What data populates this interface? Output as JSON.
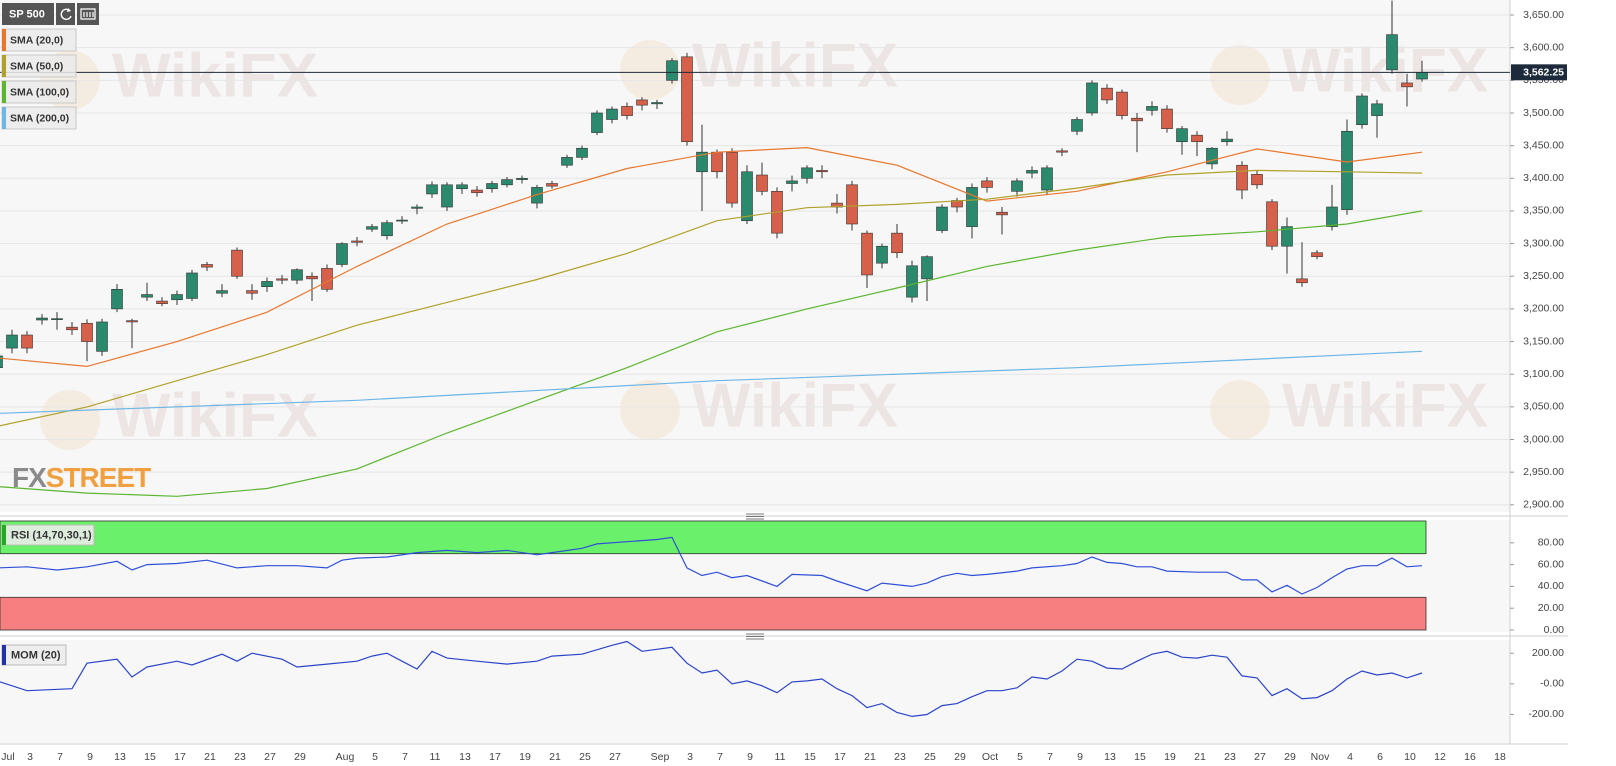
{
  "toolbar": {
    "symbol": "SP 500"
  },
  "watermark": "WikiFX",
  "brand": [
    "FX",
    "STREET"
  ],
  "chart_data": [
    {
      "type": "candlestick",
      "title": "SP 500",
      "categories": [
        "Jul",
        null,
        "3",
        null,
        "7",
        null,
        "9",
        null,
        "13",
        null,
        "15",
        null,
        "17",
        null,
        "21",
        null,
        "23",
        null,
        "27",
        null,
        "29",
        null,
        null,
        "Aug",
        null,
        "5",
        null,
        "7",
        null,
        "11",
        null,
        "13",
        null,
        "17",
        null,
        "19",
        null,
        "21",
        null,
        "25",
        null,
        "27",
        null,
        null,
        "Sep",
        null,
        "3",
        null,
        "7",
        null,
        "9",
        null,
        "11",
        null,
        "15",
        null,
        "17",
        null,
        "21",
        null,
        "23",
        null,
        "25",
        null,
        "29",
        null,
        "Oct",
        null,
        "5",
        null,
        "7",
        null,
        "9",
        null,
        "13",
        null,
        "15",
        null,
        "19",
        null,
        "21",
        null,
        "23",
        null,
        "27",
        null,
        "29",
        null,
        "Nov",
        null,
        "4",
        null,
        "6",
        null,
        "10",
        null,
        "12",
        null,
        "16",
        null,
        "18"
      ],
      "open": [
        3110,
        3140,
        3160,
        3183,
        3184,
        3172,
        3178,
        3135,
        3200,
        3182,
        3218,
        3212,
        3214,
        3216,
        3268,
        3224,
        3290,
        3228,
        3234,
        3246,
        3244,
        3250,
        3262,
        3268,
        3304,
        3322,
        3312,
        3336,
        3354,
        3376,
        3356,
        3384,
        3382,
        3384,
        3390,
        3398,
        3362,
        3392,
        3420,
        3432,
        3470,
        3490,
        3510,
        3520,
        3514,
        3550,
        3586,
        3410,
        3440,
        3440,
        3335,
        3405,
        3380,
        3392,
        3400,
        3412,
        3362,
        3390,
        3316,
        3270,
        3316,
        3218,
        3246,
        3320,
        3366,
        3326,
        3396,
        3348,
        3380,
        3408,
        3382,
        3442,
        3472,
        3500,
        3538,
        3532,
        3492,
        3504,
        3506,
        3456,
        3466,
        3422,
        3456,
        3420,
        3406,
        3364,
        3296,
        3246,
        3286,
        3326,
        3352,
        3482,
        3496,
        3566,
        3546,
        3552,
        null,
        null,
        null,
        null,
        null
      ],
      "high": [
        3138,
        3168,
        3166,
        3192,
        3195,
        3180,
        3184,
        3185,
        3238,
        3185,
        3240,
        3218,
        3228,
        3260,
        3272,
        3238,
        3294,
        3238,
        3248,
        3252,
        3262,
        3256,
        3268,
        3302,
        3310,
        3330,
        3336,
        3342,
        3360,
        3395,
        3394,
        3394,
        3388,
        3396,
        3402,
        3404,
        3390,
        3396,
        3436,
        3450,
        3504,
        3510,
        3516,
        3524,
        3520,
        3584,
        3592,
        3482,
        3444,
        3446,
        3420,
        3424,
        3386,
        3404,
        3420,
        3420,
        3376,
        3396,
        3320,
        3300,
        3330,
        3274,
        3282,
        3360,
        3370,
        3392,
        3402,
        3356,
        3400,
        3418,
        3420,
        3446,
        3494,
        3550,
        3544,
        3536,
        3500,
        3518,
        3512,
        3480,
        3472,
        3448,
        3472,
        3426,
        3412,
        3368,
        3340,
        3302,
        3290,
        3390,
        3490,
        3530,
        3520,
        3672,
        3560,
        3580,
        null,
        null,
        null,
        null,
        null
      ],
      "low": [
        3100,
        3132,
        3132,
        3176,
        3168,
        3160,
        3120,
        3128,
        3195,
        3140,
        3212,
        3204,
        3206,
        3212,
        3258,
        3218,
        3246,
        3214,
        3226,
        3238,
        3238,
        3212,
        3226,
        3264,
        3296,
        3318,
        3306,
        3330,
        3345,
        3370,
        3350,
        3376,
        3372,
        3378,
        3386,
        3392,
        3354,
        3384,
        3416,
        3428,
        3466,
        3484,
        3490,
        3504,
        3506,
        3545,
        3450,
        3350,
        3400,
        3355,
        3330,
        3374,
        3308,
        3380,
        3392,
        3400,
        3346,
        3320,
        3232,
        3262,
        3278,
        3210,
        3212,
        3316,
        3348,
        3308,
        3378,
        3314,
        3372,
        3400,
        3376,
        3434,
        3466,
        3496,
        3514,
        3490,
        3440,
        3496,
        3470,
        3436,
        3434,
        3414,
        3450,
        3368,
        3384,
        3290,
        3254,
        3234,
        3276,
        3320,
        3344,
        3476,
        3462,
        3560,
        3510,
        3548,
        null,
        null,
        null,
        null,
        null
      ],
      "close": [
        3128,
        3160,
        3140,
        3186,
        3185,
        3168,
        3150,
        3180,
        3230,
        3180,
        3222,
        3208,
        3222,
        3255,
        3264,
        3228,
        3250,
        3224,
        3242,
        3244,
        3260,
        3246,
        3230,
        3300,
        3302,
        3326,
        3332,
        3336,
        3356,
        3390,
        3390,
        3390,
        3378,
        3392,
        3398,
        3400,
        3386,
        3388,
        3432,
        3446,
        3500,
        3506,
        3496,
        3512,
        3516,
        3580,
        3456,
        3440,
        3410,
        3362,
        3410,
        3380,
        3316,
        3396,
        3416,
        3410,
        3356,
        3330,
        3252,
        3296,
        3286,
        3266,
        3280,
        3356,
        3356,
        3386,
        3386,
        3344,
        3396,
        3412,
        3416,
        3440,
        3490,
        3546,
        3520,
        3496,
        3488,
        3510,
        3476,
        3476,
        3456,
        3446,
        3460,
        3382,
        3390,
        3296,
        3326,
        3240,
        3280,
        3356,
        3472,
        3526,
        3514,
        3620,
        3540,
        3562.25,
        null,
        null,
        null,
        null,
        null
      ],
      "colors": {
        "up": "#2b8a6e",
        "down": "#d6604a"
      },
      "ylim": [
        2889,
        3673
      ],
      "yticks": [
        {
          "value": 2900,
          "label": "2,900.00"
        },
        {
          "value": 2950,
          "label": "2,950.00"
        },
        {
          "value": 3000,
          "label": "3,000.00"
        },
        {
          "value": 3050,
          "label": "3,050.00"
        },
        {
          "value": 3100,
          "label": "3,100.00"
        },
        {
          "value": 3150,
          "label": "3,150.00"
        },
        {
          "value": 3200,
          "label": "3,200.00"
        },
        {
          "value": 3250,
          "label": "3,250.00"
        },
        {
          "value": 3300,
          "label": "3,300.00"
        },
        {
          "value": 3350,
          "label": "3,350.00"
        },
        {
          "value": 3400,
          "label": "3,400.00"
        },
        {
          "value": 3450,
          "label": "3,450.00"
        },
        {
          "value": 3500,
          "label": "3,500.00"
        },
        {
          "value": 3550,
          "label": "3,550.00"
        },
        {
          "value": 3600,
          "label": "3,600.00"
        },
        {
          "value": 3650,
          "label": "3,650.00"
        }
      ],
      "grid": true,
      "last_price": {
        "value": 3562.25,
        "label": "3,562.25"
      },
      "series": [
        {
          "name": "SMA (20,0)",
          "color": "#e8772e",
          "x": [
            0,
            6,
            12,
            18,
            24,
            30,
            36,
            42,
            48,
            54,
            60,
            66,
            72,
            78,
            84,
            90,
            95
          ],
          "values": [
            3125,
            3112,
            3150,
            3195,
            3265,
            3330,
            3375,
            3415,
            3440,
            3447,
            3420,
            3365,
            3380,
            3410,
            3445,
            3425,
            3440
          ]
        },
        {
          "name": "SMA (50,0)",
          "color": "#b1a12a",
          "x": [
            0,
            6,
            12,
            18,
            24,
            30,
            36,
            42,
            48,
            54,
            60,
            66,
            72,
            78,
            84,
            90,
            95
          ],
          "values": [
            3020,
            3050,
            3090,
            3130,
            3175,
            3210,
            3245,
            3285,
            3335,
            3355,
            3360,
            3368,
            3385,
            3405,
            3412,
            3410,
            3408
          ]
        },
        {
          "name": "SMA (100,0)",
          "color": "#5cb530",
          "x": [
            0,
            6,
            12,
            18,
            24,
            30,
            36,
            42,
            48,
            54,
            60,
            66,
            72,
            78,
            84,
            90,
            95
          ],
          "values": [
            2928,
            2918,
            2913,
            2925,
            2955,
            3010,
            3060,
            3110,
            3165,
            3200,
            3232,
            3265,
            3290,
            3310,
            3318,
            3330,
            3350
          ]
        },
        {
          "name": "SMA (200,0)",
          "color": "#6db6e6",
          "x": [
            0,
            24,
            48,
            72,
            95
          ],
          "values": [
            3040,
            3060,
            3090,
            3110,
            3135
          ]
        }
      ]
    },
    {
      "type": "line",
      "title": "RSI (14,70,30,1)",
      "ylim": [
        0,
        100
      ],
      "yticks": [
        {
          "value": 0,
          "label": "0.00"
        },
        {
          "value": 20,
          "label": "20.00"
        },
        {
          "value": 40,
          "label": "40.00"
        },
        {
          "value": 60,
          "label": "60.00"
        },
        {
          "value": 80,
          "label": "80.00"
        }
      ],
      "bands": [
        {
          "range": [
            70,
            100
          ],
          "color": "#6af06a"
        },
        {
          "range": [
            0,
            30
          ],
          "color": "#f77f7f"
        }
      ],
      "series": [
        {
          "color": "#2f4fd8",
          "x": [
            0,
            2,
            4,
            6,
            8,
            9,
            10,
            12,
            14,
            16,
            18,
            20,
            22,
            23,
            24,
            26,
            28,
            30,
            32,
            34,
            36,
            37,
            39,
            40,
            42,
            44,
            45,
            46,
            47,
            48,
            49,
            50,
            52,
            53,
            55,
            56,
            58,
            59,
            61,
            62,
            63,
            64,
            65,
            66,
            68,
            69,
            71,
            72,
            73,
            74,
            75,
            76,
            77,
            78,
            80,
            82,
            83,
            84,
            85,
            86,
            87,
            88,
            89,
            90,
            91,
            92,
            93,
            94,
            95
          ],
          "values": [
            57,
            58,
            55,
            58,
            63,
            55,
            60,
            61,
            64,
            57,
            59,
            59,
            57,
            64,
            66,
            67,
            71,
            73,
            71,
            73,
            69,
            71,
            75,
            79,
            81,
            83,
            85,
            57,
            50,
            53,
            48,
            50,
            40,
            51,
            50,
            45,
            36,
            43,
            40,
            43,
            49,
            52,
            50,
            51,
            54,
            57,
            59,
            61,
            67,
            62,
            61,
            58,
            58,
            54,
            53,
            53,
            46,
            46,
            35,
            41,
            33,
            39,
            48,
            56,
            59,
            59,
            66,
            58,
            59
          ]
        }
      ]
    },
    {
      "type": "line",
      "title": "MOM (20)",
      "ylim": [
        -380,
        280
      ],
      "yticks": [
        {
          "value": -200,
          "label": "-200.00"
        },
        {
          "value": 0,
          "label": "-0.00"
        },
        {
          "value": 200,
          "label": "200.00"
        }
      ],
      "series": [
        {
          "color": "#2a44c8",
          "x": [
            0,
            2,
            5,
            6,
            8,
            9,
            10,
            12,
            13,
            15,
            16,
            17,
            19,
            20,
            22,
            24,
            25,
            26,
            27,
            28,
            29,
            30,
            32,
            34,
            36,
            37,
            39,
            41,
            42,
            43,
            45,
            46,
            47,
            48,
            49,
            50,
            51,
            52,
            53,
            54,
            55,
            56,
            57,
            58,
            59,
            60,
            61,
            62,
            63,
            64,
            65,
            66,
            67,
            68,
            69,
            70,
            71,
            72,
            73,
            74,
            75,
            76,
            77,
            78,
            79,
            80,
            81,
            82,
            83,
            84,
            85,
            86,
            87,
            88,
            89,
            90,
            91,
            92,
            93,
            94,
            95
          ],
          "values": [
            19,
            -45,
            -32,
            135,
            161,
            45,
            110,
            148,
            123,
            194,
            148,
            200,
            161,
            110,
            129,
            148,
            181,
            200,
            148,
            97,
            213,
            168,
            148,
            129,
            148,
            181,
            194,
            252,
            277,
            213,
            239,
            135,
            71,
            90,
            0,
            19,
            -13,
            -58,
            13,
            19,
            32,
            -32,
            -77,
            -155,
            -129,
            -187,
            -213,
            -200,
            -142,
            -129,
            -84,
            -45,
            -45,
            -26,
            45,
            32,
            84,
            161,
            148,
            103,
            97,
            148,
            194,
            213,
            174,
            168,
            187,
            174,
            52,
            39,
            -77,
            -32,
            -97,
            -90,
            -45,
            32,
            84,
            58,
            71,
            39,
            71
          ]
        }
      ]
    }
  ]
}
